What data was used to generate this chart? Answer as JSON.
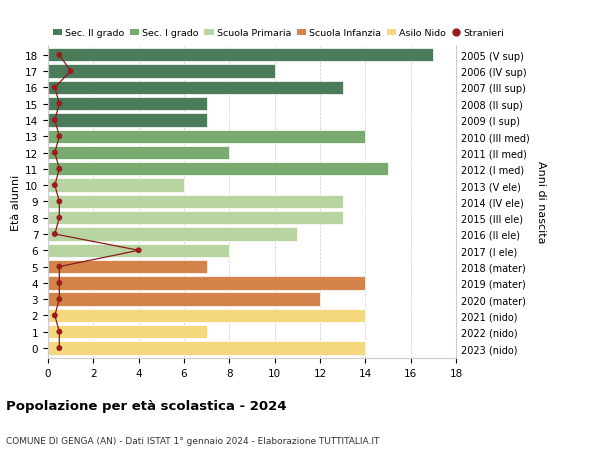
{
  "ages": [
    18,
    17,
    16,
    15,
    14,
    13,
    12,
    11,
    10,
    9,
    8,
    7,
    6,
    5,
    4,
    3,
    2,
    1,
    0
  ],
  "years": [
    "2005 (V sup)",
    "2006 (IV sup)",
    "2007 (III sup)",
    "2008 (II sup)",
    "2009 (I sup)",
    "2010 (III med)",
    "2011 (II med)",
    "2012 (I med)",
    "2013 (V ele)",
    "2014 (IV ele)",
    "2015 (III ele)",
    "2016 (II ele)",
    "2017 (I ele)",
    "2018 (mater)",
    "2019 (mater)",
    "2020 (mater)",
    "2021 (nido)",
    "2022 (nido)",
    "2023 (nido)"
  ],
  "bar_values": [
    17,
    10,
    13,
    7,
    7,
    14,
    8,
    15,
    6,
    13,
    13,
    11,
    8,
    7,
    14,
    12,
    14,
    7,
    14
  ],
  "bar_colors": [
    "#4a7c59",
    "#4a7c59",
    "#4a7c59",
    "#4a7c59",
    "#4a7c59",
    "#7aab6e",
    "#7aab6e",
    "#7aab6e",
    "#b8d4a0",
    "#b8d4a0",
    "#b8d4a0",
    "#b8d4a0",
    "#b8d4a0",
    "#d4834a",
    "#d4834a",
    "#d4834a",
    "#f5d87e",
    "#f5d87e",
    "#f5d87e"
  ],
  "stranieri_x": [
    0.5,
    1.0,
    0.3,
    0.5,
    0.3,
    0.5,
    0.3,
    0.5,
    0.3,
    0.5,
    0.5,
    0.3,
    4.0,
    0.5,
    0.5,
    0.5,
    0.3,
    0.5,
    0.5
  ],
  "legend_labels": [
    "Sec. II grado",
    "Sec. I grado",
    "Scuola Primaria",
    "Scuola Infanzia",
    "Asilo Nido",
    "Stranieri"
  ],
  "legend_colors": [
    "#4a7c59",
    "#7aab6e",
    "#b8d4a0",
    "#d4834a",
    "#f5d87e",
    "#9b1c1c"
  ],
  "ylabel_left": "Età alunni",
  "ylabel_right": "Anni di nascita",
  "title": "Popolazione per età scolastica - 2024",
  "subtitle": "COMUNE DI GENGA (AN) - Dati ISTAT 1° gennaio 2024 - Elaborazione TUTTITALIA.IT",
  "xlim": [
    0,
    18
  ],
  "background_color": "#ffffff",
  "grid_color": "#cccccc",
  "bar_edge_color": "#ffffff"
}
